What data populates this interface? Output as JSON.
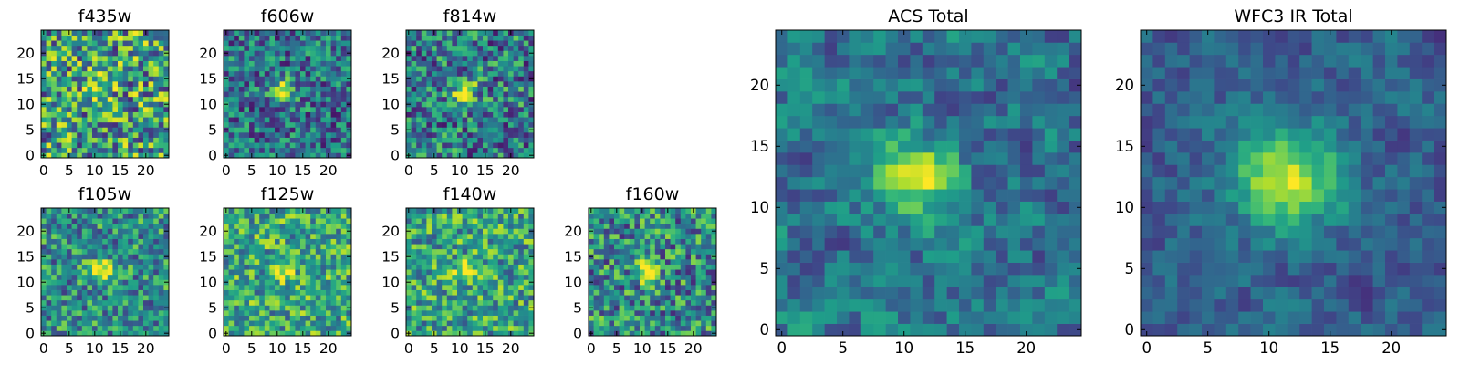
{
  "chart_data": [
    {
      "type": "heatmap",
      "title": "f435w",
      "xticks": [
        "0",
        "5",
        "10",
        "15",
        "20"
      ],
      "yticks": [
        "0",
        "5",
        "10",
        "15",
        "20"
      ],
      "xlim": [
        0,
        25
      ],
      "ylim": [
        0,
        25
      ],
      "grid_size": 25,
      "source_center": [
        11,
        13
      ],
      "source_size": "small",
      "peak_contrast": 0.45,
      "noise_level": 0.55,
      "background_level": 0.55
    },
    {
      "type": "heatmap",
      "title": "f606w",
      "xticks": [
        "0",
        "5",
        "10",
        "15",
        "20"
      ],
      "yticks": [
        "0",
        "5",
        "10",
        "15",
        "20"
      ],
      "xlim": [
        0,
        25
      ],
      "ylim": [
        0,
        25
      ],
      "grid_size": 25,
      "source_center": [
        11,
        12.5
      ],
      "source_size": "small",
      "peak_contrast": 0.7,
      "noise_level": 0.4,
      "background_level": 0.38
    },
    {
      "type": "heatmap",
      "title": "f814w",
      "xticks": [
        "0",
        "5",
        "10",
        "15",
        "20"
      ],
      "yticks": [
        "0",
        "5",
        "10",
        "15",
        "20"
      ],
      "xlim": [
        0,
        25
      ],
      "ylim": [
        0,
        25
      ],
      "grid_size": 25,
      "source_center": [
        11,
        12.5
      ],
      "source_size": "small",
      "peak_contrast": 0.6,
      "noise_level": 0.45,
      "background_level": 0.42
    },
    {
      "type": "heatmap",
      "title": "f105w",
      "xticks": [
        "0",
        "5",
        "10",
        "15",
        "20"
      ],
      "yticks": [
        "0",
        "5",
        "10",
        "15",
        "20"
      ],
      "xlim": [
        0,
        25
      ],
      "ylim": [
        0,
        25
      ],
      "grid_size": 25,
      "source_center": [
        11,
        12.5
      ],
      "source_size": "small",
      "peak_contrast": 0.5,
      "noise_level": 0.4,
      "background_level": 0.5
    },
    {
      "type": "heatmap",
      "title": "f125w",
      "xticks": [
        "0",
        "5",
        "10",
        "15",
        "20"
      ],
      "yticks": [
        "0",
        "5",
        "10",
        "15",
        "20"
      ],
      "xlim": [
        0,
        25
      ],
      "ylim": [
        0,
        25
      ],
      "grid_size": 25,
      "source_center": [
        11,
        12.5
      ],
      "source_size": "small",
      "peak_contrast": 0.4,
      "noise_level": 0.4,
      "background_level": 0.6
    },
    {
      "type": "heatmap",
      "title": "f140w",
      "xticks": [
        "0",
        "5",
        "10",
        "15",
        "20"
      ],
      "yticks": [
        "0",
        "5",
        "10",
        "15",
        "20"
      ],
      "xlim": [
        0,
        25
      ],
      "ylim": [
        0,
        25
      ],
      "grid_size": 25,
      "source_center": [
        11,
        12
      ],
      "source_size": "small",
      "peak_contrast": 0.4,
      "noise_level": 0.4,
      "background_level": 0.58
    },
    {
      "type": "heatmap",
      "title": "f160w",
      "xticks": [
        "0",
        "5",
        "10",
        "15",
        "20"
      ],
      "yticks": [
        "0",
        "5",
        "10",
        "15",
        "20"
      ],
      "xlim": [
        0,
        25
      ],
      "ylim": [
        0,
        25
      ],
      "grid_size": 25,
      "source_center": [
        11,
        12
      ],
      "source_size": "small",
      "peak_contrast": 0.5,
      "noise_level": 0.45,
      "background_level": 0.48
    },
    {
      "type": "heatmap",
      "title": "ACS Total",
      "xticks": [
        "0",
        "5",
        "10",
        "15",
        "20"
      ],
      "yticks": [
        "0",
        "5",
        "10",
        "15",
        "20"
      ],
      "xlim": [
        0,
        25
      ],
      "ylim": [
        0,
        25
      ],
      "grid_size": 25,
      "source_center": [
        11,
        12.5
      ],
      "source_size": "medium",
      "peak_contrast": 0.6,
      "noise_level": 0.35,
      "background_level": 0.38
    },
    {
      "type": "heatmap",
      "title": "WFC3 IR Total",
      "xticks": [
        "0",
        "5",
        "10",
        "15",
        "20"
      ],
      "yticks": [
        "0",
        "5",
        "10",
        "15",
        "20"
      ],
      "xlim": [
        0,
        25
      ],
      "ylim": [
        0,
        25
      ],
      "grid_size": 25,
      "source_center": [
        11.5,
        12.5
      ],
      "source_size": "large",
      "peak_contrast": 0.65,
      "noise_level": 0.25,
      "background_level": 0.3
    }
  ],
  "colors": {
    "colormap": "viridis",
    "viridis_stops": [
      "#440154",
      "#482878",
      "#3e4989",
      "#31688e",
      "#26828e",
      "#1f9e89",
      "#35b779",
      "#6ece58",
      "#b5de2b",
      "#fde725"
    ],
    "axes_edge": "#000000",
    "background": "#ffffff"
  }
}
